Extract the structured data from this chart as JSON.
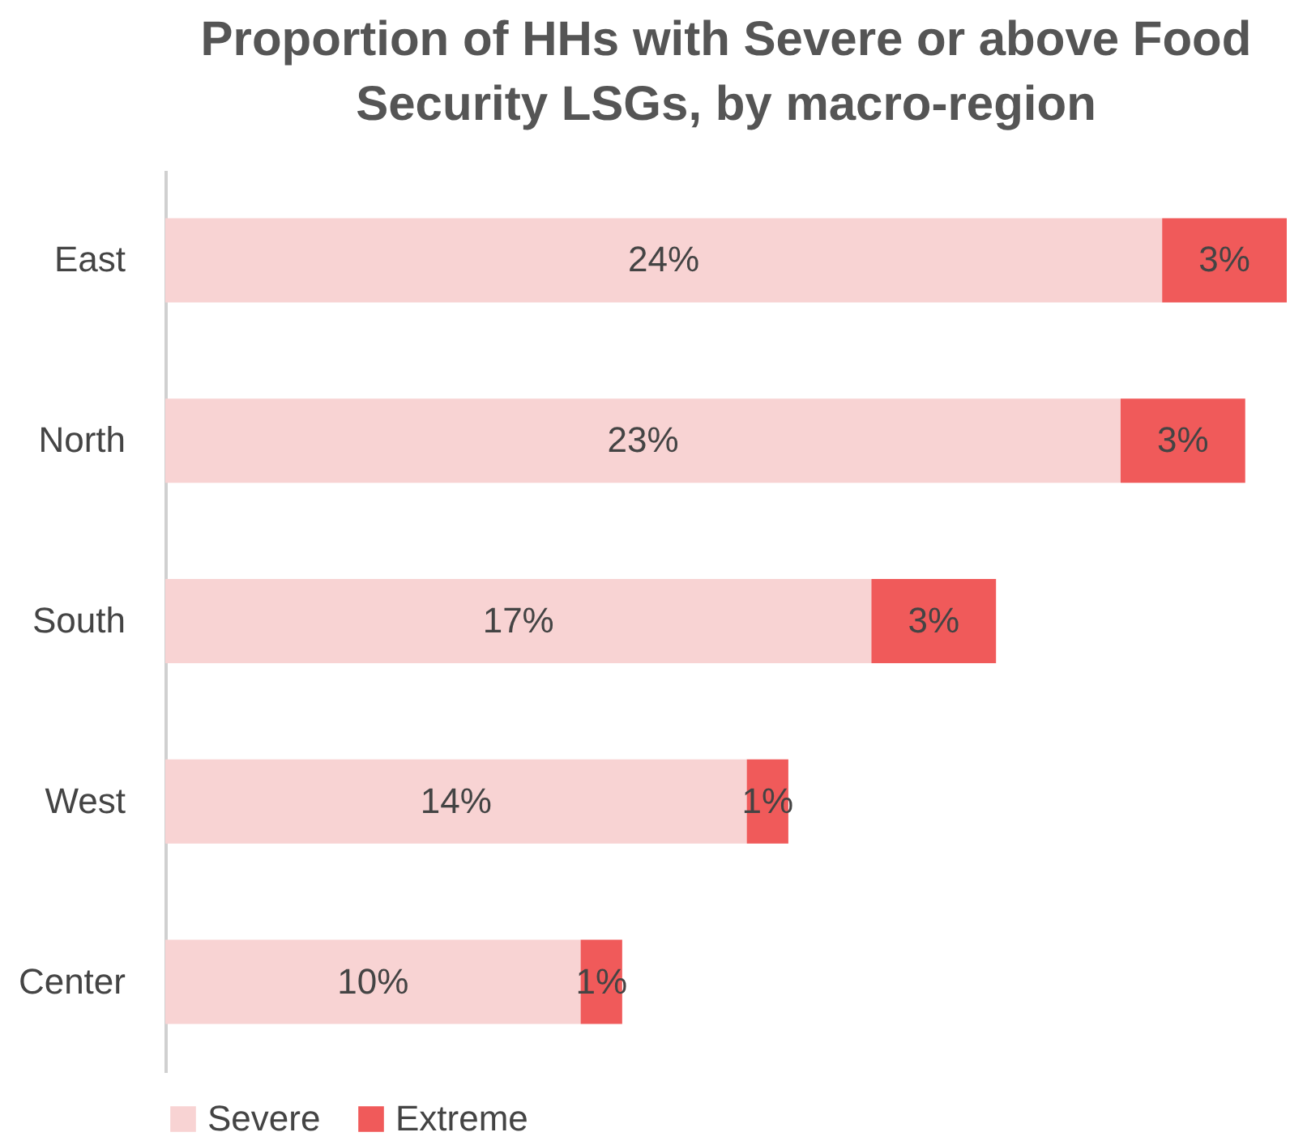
{
  "chart_data": {
    "type": "bar",
    "orientation": "horizontal",
    "stacked": true,
    "title": "Proportion of HHs with Severe or above Food Security LSGs, by macro-region",
    "categories": [
      "East",
      "North",
      "South",
      "West",
      "Center"
    ],
    "series": [
      {
        "name": "Severe",
        "color": "#f8d3d3",
        "values": [
          24,
          23,
          17,
          14,
          10
        ],
        "value_labels": [
          "24%",
          "23%",
          "17%",
          "14%",
          "10%"
        ]
      },
      {
        "name": "Extreme",
        "color": "#f05a5a",
        "values": [
          3,
          3,
          3,
          1,
          1
        ],
        "value_labels": [
          "3%",
          "3%",
          "3%",
          "1%",
          "1%"
        ]
      }
    ],
    "legend": "bottom",
    "grid": false
  }
}
